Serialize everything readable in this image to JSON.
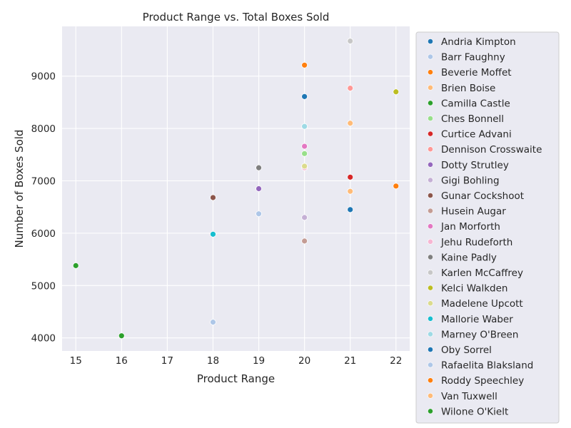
{
  "chart_data": {
    "type": "scatter",
    "title": "Product Range vs. Total Boxes Sold",
    "xlabel": "Product Range",
    "ylabel": "Number of Boxes Sold",
    "xlim": [
      14.7,
      22.3
    ],
    "ylim": [
      3750,
      9950
    ],
    "xticks": [
      "15",
      "16",
      "17",
      "18",
      "19",
      "20",
      "21",
      "22"
    ],
    "yticks": [
      "4000",
      "5000",
      "6000",
      "7000",
      "8000",
      "9000"
    ],
    "grid": true,
    "legend_position": "outside-right",
    "series": [
      {
        "name": "Andria Kimpton",
        "color": "#1f77b4",
        "points": [
          [
            20,
            8610
          ]
        ]
      },
      {
        "name": "Barr Faughny",
        "color": "#aec7e8",
        "points": [
          [
            19,
            6370
          ]
        ]
      },
      {
        "name": "Beverie Moffet",
        "color": "#ff7f0e",
        "points": [
          [
            20,
            9210
          ]
        ]
      },
      {
        "name": "Brien Boise",
        "color": "#ffbb78",
        "points": [
          [
            21,
            8100
          ]
        ]
      },
      {
        "name": "Camilla Castle",
        "color": "#2ca02c",
        "points": [
          [
            16,
            4040
          ]
        ]
      },
      {
        "name": "Ches Bonnell",
        "color": "#98df8a",
        "points": [
          [
            20,
            7520
          ]
        ]
      },
      {
        "name": "Curtice Advani",
        "color": "#d62728",
        "points": [
          [
            21,
            7070
          ]
        ]
      },
      {
        "name": "Dennison Crosswaite",
        "color": "#ff9896",
        "points": [
          [
            21,
            8770
          ]
        ]
      },
      {
        "name": "Dotty Strutley",
        "color": "#9467bd",
        "points": [
          [
            19,
            6850
          ]
        ]
      },
      {
        "name": "Gigi Bohling",
        "color": "#c5b0d5",
        "points": [
          [
            20,
            6300
          ]
        ]
      },
      {
        "name": "Gunar Cockshoot",
        "color": "#8c564b",
        "points": [
          [
            18,
            6680
          ]
        ]
      },
      {
        "name": "Husein Augar",
        "color": "#c49c94",
        "points": [
          [
            20,
            5850
          ]
        ]
      },
      {
        "name": "Jan Morforth",
        "color": "#e377c2",
        "points": [
          [
            20,
            7660
          ]
        ]
      },
      {
        "name": "Jehu Rudeforth",
        "color": "#f7b6d2",
        "points": [
          [
            20,
            7250
          ]
        ]
      },
      {
        "name": "Kaine Padly",
        "color": "#7f7f7f",
        "points": [
          [
            19,
            7250
          ]
        ]
      },
      {
        "name": "Karlen McCaffrey",
        "color": "#c7c7c7",
        "points": [
          [
            21,
            9670
          ]
        ]
      },
      {
        "name": "Kelci Walkden",
        "color": "#bcbd22",
        "points": [
          [
            22,
            8700
          ]
        ]
      },
      {
        "name": "Madelene Upcott",
        "color": "#dbdb8d",
        "points": [
          [
            20,
            7280
          ]
        ]
      },
      {
        "name": "Mallorie Waber",
        "color": "#17becf",
        "points": [
          [
            18,
            5980
          ]
        ]
      },
      {
        "name": "Marney O'Breen",
        "color": "#9edae5",
        "points": [
          [
            20,
            8040
          ]
        ]
      },
      {
        "name": "Oby Sorrel",
        "color": "#1f77b4",
        "points": [
          [
            21,
            6450
          ]
        ]
      },
      {
        "name": "Rafaelita Blaksland",
        "color": "#aec7e8",
        "points": [
          [
            18,
            4300
          ]
        ]
      },
      {
        "name": "Roddy Speechley",
        "color": "#ff7f0e",
        "points": [
          [
            22,
            6900
          ]
        ]
      },
      {
        "name": "Van Tuxwell",
        "color": "#ffbb78",
        "points": [
          [
            21,
            6800
          ]
        ]
      },
      {
        "name": "Wilone O'Kielt",
        "color": "#2ca02c",
        "points": [
          [
            15,
            5380
          ]
        ]
      }
    ],
    "colors": {
      "plot_background": "#eaeaf2",
      "grid": "#ffffff",
      "text": "#262626",
      "legend_background": "#eaeaf2",
      "legend_border": "#cccccc"
    }
  }
}
